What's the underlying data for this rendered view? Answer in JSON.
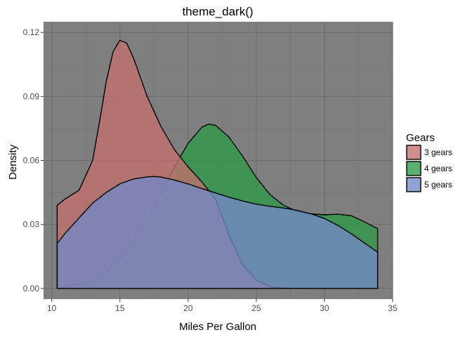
{
  "chart_data": {
    "type": "area",
    "title": "theme_dark()",
    "xlabel": "Miles Per Gallon",
    "ylabel": "Density",
    "xlim": [
      9.4,
      35
    ],
    "ylim": [
      -0.005,
      0.125
    ],
    "xticks": [
      10,
      15,
      20,
      25,
      30,
      35
    ],
    "yticks": [
      0.0,
      0.03,
      0.06,
      0.09,
      0.12
    ],
    "ytick_labels": [
      "0.00",
      "0.03",
      "0.06",
      "0.09",
      "0.12"
    ],
    "grid": true,
    "legend": {
      "title": "Gears",
      "position": "right"
    },
    "series": [
      {
        "name": "4 gears",
        "color": "#2e9a46",
        "x": [
          10.4,
          11,
          12,
          13,
          14,
          15,
          16,
          17,
          18,
          19,
          20,
          21,
          21.5,
          22,
          23,
          24,
          25,
          26,
          27,
          28,
          29,
          30,
          31,
          32,
          33,
          33.9
        ],
        "y": [
          0.0005,
          0.001,
          0.002,
          0.004,
          0.008,
          0.014,
          0.022,
          0.032,
          0.044,
          0.057,
          0.068,
          0.0755,
          0.077,
          0.0765,
          0.071,
          0.062,
          0.052,
          0.044,
          0.039,
          0.036,
          0.035,
          0.0345,
          0.0348,
          0.034,
          0.031,
          0.028
        ]
      },
      {
        "name": "3 gears",
        "color": "#c1706b",
        "x": [
          10.4,
          11,
          12,
          13,
          13.5,
          14,
          14.5,
          15,
          15.5,
          16,
          17,
          18,
          19,
          20,
          21,
          22,
          23,
          24,
          25,
          26,
          27,
          28,
          29,
          30,
          31,
          32,
          33,
          33.9
        ],
        "y": [
          0.039,
          0.042,
          0.046,
          0.06,
          0.078,
          0.097,
          0.111,
          0.1163,
          0.115,
          0.108,
          0.09,
          0.076,
          0.065,
          0.057,
          0.05,
          0.042,
          0.025,
          0.011,
          0.004,
          0.0008,
          0.0002,
          0.0001,
          0,
          0,
          0,
          0,
          0,
          0
        ]
      },
      {
        "name": "5 gears",
        "color": "#7389c6",
        "x": [
          10.4,
          11,
          12,
          13,
          14,
          15,
          16,
          17,
          17.5,
          18,
          19,
          20,
          21,
          22,
          23,
          24,
          25,
          26,
          27,
          28,
          29,
          30,
          31,
          32,
          33,
          33.9
        ],
        "y": [
          0.021,
          0.026,
          0.033,
          0.04,
          0.045,
          0.049,
          0.0513,
          0.0523,
          0.0525,
          0.0522,
          0.0508,
          0.049,
          0.0468,
          0.0448,
          0.0428,
          0.041,
          0.0395,
          0.0385,
          0.0377,
          0.0366,
          0.035,
          0.0328,
          0.0295,
          0.0255,
          0.021,
          0.017
        ]
      }
    ]
  }
}
